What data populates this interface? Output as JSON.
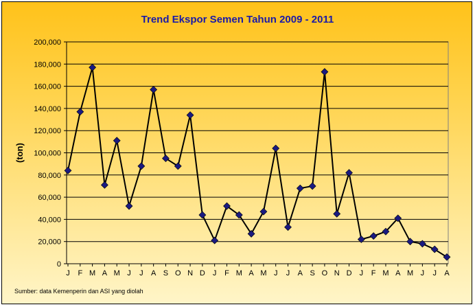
{
  "chart_data": {
    "type": "line",
    "title": "Trend Ekspor Semen Tahun 2009 - 2011",
    "xlabel": "",
    "ylabel": "(ton)",
    "ylim": [
      0,
      200000
    ],
    "yticks": [
      "0",
      "20,000",
      "40,000",
      "60,000",
      "80,000",
      "100,000",
      "120,000",
      "140,000",
      "160,000",
      "180,000",
      "200,000"
    ],
    "grid": true,
    "categories": [
      "J",
      "F",
      "M",
      "A",
      "M",
      "J",
      "J",
      "A",
      "S",
      "O",
      "N",
      "D",
      "J",
      "F",
      "M",
      "A",
      "M",
      "J",
      "J",
      "A",
      "S",
      "O",
      "N",
      "D",
      "J",
      "F",
      "M",
      "A",
      "M",
      "J",
      "J",
      "A"
    ],
    "series": [
      {
        "name": "Ekspor Semen",
        "color": "#000000",
        "marker_color": "#1a1a80",
        "values": [
          84000,
          137000,
          177000,
          71000,
          111000,
          52000,
          88000,
          157000,
          95000,
          88000,
          134000,
          44000,
          21000,
          52000,
          44000,
          27000,
          47000,
          104000,
          33000,
          68000,
          70000,
          173000,
          45000,
          82000,
          22000,
          25000,
          29000,
          41000,
          20000,
          18000,
          13000,
          6000
        ]
      }
    ],
    "source": "Sumber: data Kemenperin dan ASI yang diolah"
  }
}
